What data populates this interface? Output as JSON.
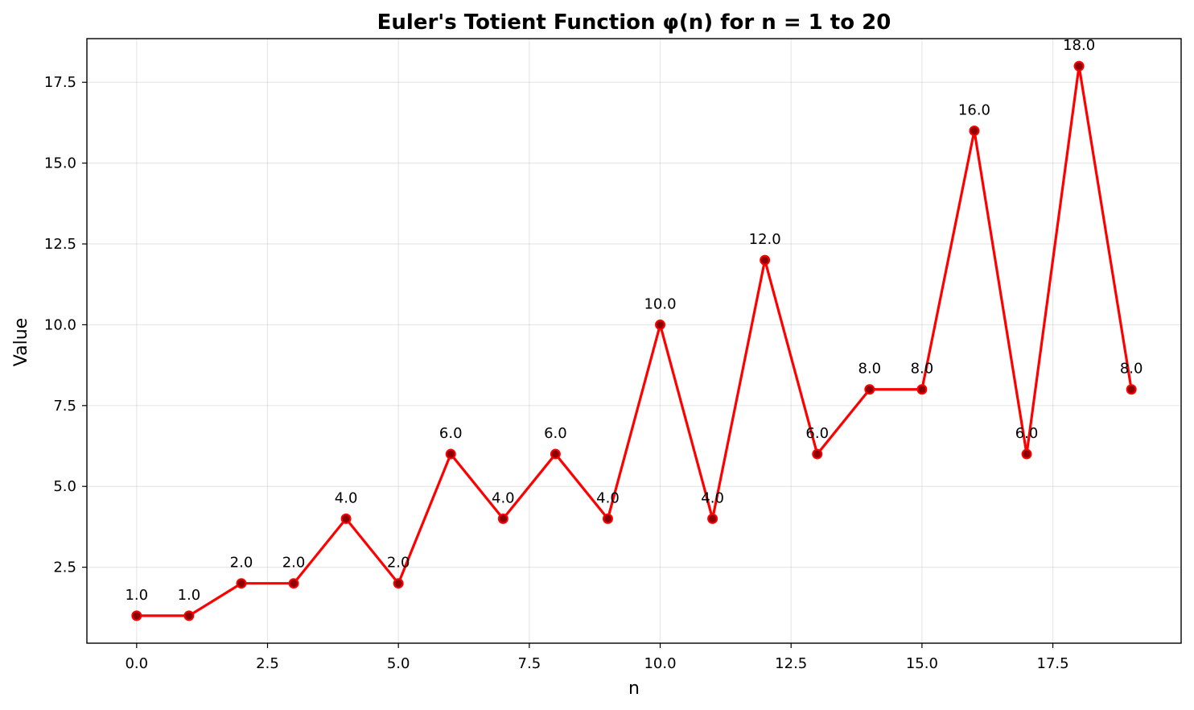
{
  "chart_data": {
    "type": "line",
    "title": "Euler's Totient Function φ(n) for n = 1 to 20",
    "xlabel": "n",
    "ylabel": "Value",
    "xlim": [
      -0.95,
      19.95
    ],
    "ylim": [
      0.15,
      18.85
    ],
    "grid": true,
    "x_ticks": [
      0.0,
      2.5,
      5.0,
      7.5,
      10.0,
      12.5,
      15.0,
      17.5
    ],
    "x_tick_labels": [
      "0.0",
      "2.5",
      "5.0",
      "7.5",
      "10.0",
      "12.5",
      "15.0",
      "17.5"
    ],
    "y_ticks": [
      2.5,
      5.0,
      7.5,
      10.0,
      12.5,
      15.0,
      17.5
    ],
    "y_tick_labels": [
      "2.5",
      "5.0",
      "7.5",
      "10.0",
      "12.5",
      "15.0",
      "17.5"
    ],
    "x": [
      0,
      1,
      2,
      3,
      4,
      5,
      6,
      7,
      8,
      9,
      10,
      11,
      12,
      13,
      14,
      15,
      16,
      17,
      18,
      19
    ],
    "series": [
      {
        "values": [
          1,
          1,
          2,
          2,
          4,
          2,
          6,
          4,
          6,
          4,
          10,
          4,
          12,
          6,
          8,
          8,
          16,
          6,
          18,
          8
        ],
        "data_labels": [
          "1.0",
          "1.0",
          "2.0",
          "2.0",
          "4.0",
          "2.0",
          "6.0",
          "4.0",
          "6.0",
          "4.0",
          "10.0",
          "4.0",
          "12.0",
          "6.0",
          "8.0",
          "8.0",
          "16.0",
          "6.0",
          "18.0",
          "8.0"
        ],
        "line_color": "#ff0000",
        "marker_fill": "#8b0000",
        "marker_edge": "#ff0000"
      }
    ]
  }
}
